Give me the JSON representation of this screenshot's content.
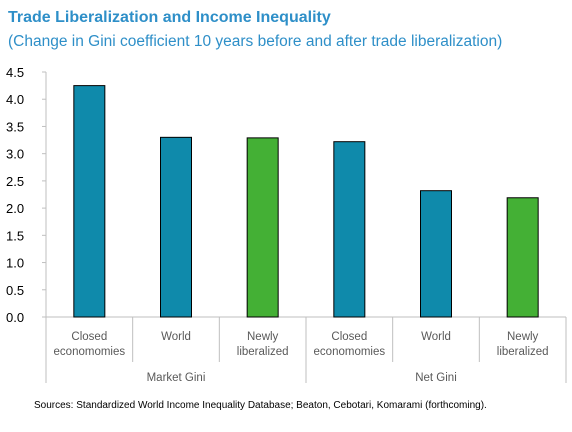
{
  "header": {
    "title": "Trade Liberalization and Income Inequality",
    "subtitle": "(Change in Gini coefficient 10 years before and after trade liberalization)"
  },
  "footer": {
    "source": "Sources: Standardized World Income Inequality Database; Beaton, Cebotari, Komarami (forthcoming)."
  },
  "colors": {
    "blue": "#0f8aab",
    "green": "#44b035",
    "title": "#2e8fc8",
    "axis": "#bfbfbf"
  },
  "chart_data": {
    "type": "bar",
    "title": "Trade Liberalization and Income Inequality",
    "subtitle": "(Change in Gini coefficient 10 years before and after trade liberalization)",
    "xlabel": "",
    "ylabel": "",
    "ylim": [
      0,
      4.5
    ],
    "yticks": [
      "0.0",
      "0.5",
      "1.0",
      "1.5",
      "2.0",
      "2.5",
      "3.0",
      "3.5",
      "4.0",
      "4.5"
    ],
    "grid": false,
    "groups": [
      "Market Gini",
      "Net Gini"
    ],
    "categories": [
      [
        "Closed",
        "economomies"
      ],
      [
        "World"
      ],
      [
        "Newly",
        "liberalized"
      ],
      [
        "Closed",
        "economomies"
      ],
      [
        "World"
      ],
      [
        "Newly",
        "liberalized"
      ]
    ],
    "values": [
      4.25,
      3.3,
      3.29,
      3.22,
      2.32,
      2.19
    ],
    "bar_colors": [
      "blue",
      "blue",
      "green",
      "blue",
      "blue",
      "green"
    ]
  }
}
